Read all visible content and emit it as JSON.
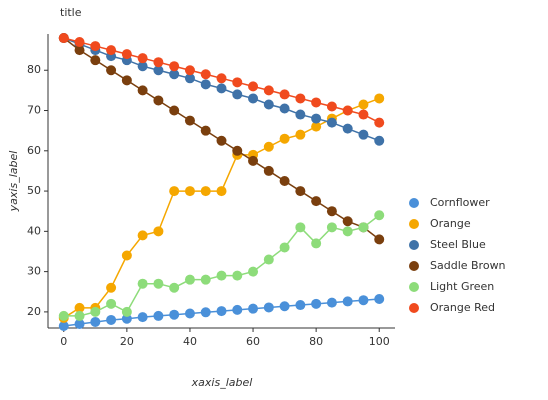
{
  "chart_data": {
    "type": "line",
    "title": "title",
    "x_label": "xaxis_label",
    "y_label": "yaxis_label",
    "x": [
      0,
      5,
      10,
      15,
      20,
      25,
      30,
      35,
      40,
      45,
      50,
      55,
      60,
      65,
      70,
      75,
      80,
      85,
      90,
      95,
      100
    ],
    "series": [
      {
        "name": "Cornflower",
        "color": "#4a90d9",
        "values": [
          16.5,
          17,
          17.5,
          18,
          18.3,
          18.7,
          19,
          19.3,
          19.6,
          19.9,
          20.2,
          20.5,
          20.8,
          21.1,
          21.4,
          21.7,
          22,
          22.3,
          22.6,
          22.9,
          23.2
        ]
      },
      {
        "name": "Orange",
        "color": "#f5a700",
        "values": [
          18.5,
          21,
          21,
          26,
          34,
          39,
          40,
          50,
          50,
          50,
          50,
          59,
          59,
          61,
          63,
          64,
          66,
          68,
          70,
          71.5,
          73
        ]
      },
      {
        "name": "Steel Blue",
        "color": "#3f72a8",
        "values": [
          88,
          86.5,
          85,
          83.5,
          82.5,
          81,
          80,
          79,
          78,
          76.5,
          75.5,
          74,
          73,
          71.5,
          70.5,
          69,
          68,
          67,
          65.5,
          64,
          62.5
        ]
      },
      {
        "name": "Saddle Brown",
        "color": "#7a3f0e",
        "values": [
          88,
          85,
          82.5,
          80,
          77.5,
          75,
          72.5,
          70,
          67.5,
          65,
          62.5,
          60,
          57.5,
          55,
          52.5,
          50,
          47.5,
          45,
          42.5,
          41,
          38
        ]
      },
      {
        "name": "Light Green",
        "color": "#8ddc7a",
        "values": [
          19,
          19,
          20,
          22,
          20,
          27,
          27,
          26,
          28,
          28,
          29,
          29,
          30,
          33,
          36,
          41,
          37,
          41,
          40,
          41,
          44
        ]
      },
      {
        "name": "Orange Red",
        "color": "#f04a1e",
        "values": [
          88,
          87,
          86,
          85,
          84,
          83,
          82,
          81,
          80,
          79,
          78,
          77,
          76,
          75,
          74,
          73,
          72,
          71,
          70,
          69,
          67
        ]
      }
    ],
    "xlim": [
      -5,
      105
    ],
    "xticks": [
      0,
      20,
      40,
      60,
      80,
      100
    ],
    "ylim": [
      16,
      89
    ],
    "yticks": [
      20,
      30,
      40,
      50,
      60,
      70,
      80
    ],
    "legend": "right"
  }
}
